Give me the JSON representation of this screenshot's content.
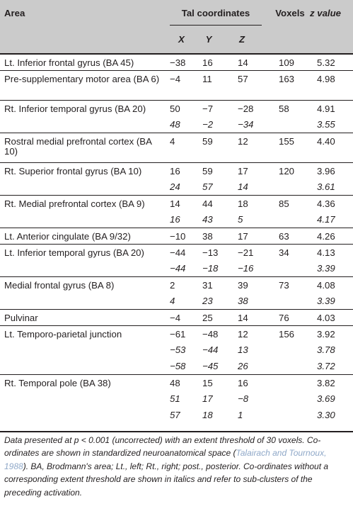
{
  "header": {
    "area": "Area",
    "tal": "Tal coordinates",
    "voxels": "Voxels",
    "zvalue": "z value",
    "x": "X",
    "y": "Y",
    "z": "Z"
  },
  "rows": [
    {
      "area": "Lt. Inferior frontal gyrus (BA 45)",
      "x": "−38",
      "y": "16",
      "z": "14",
      "voxels": "109",
      "zv": "5.32",
      "sub": false,
      "first": true
    },
    {
      "area": "Pre-supplementary motor area (BA 6)",
      "x": "−4",
      "y": "11",
      "z": "57",
      "voxels": "163",
      "zv": "4.98",
      "sub": false,
      "first": true,
      "tall": true
    },
    {
      "area": "Rt. Inferior temporal gyrus (BA 20)",
      "x": "50",
      "y": "−7",
      "z": "−28",
      "voxels": "58",
      "zv": "4.91",
      "sub": false,
      "first": true
    },
    {
      "area": "",
      "x": "48",
      "y": "−2",
      "z": "−34",
      "voxels": "",
      "zv": "3.55",
      "sub": true
    },
    {
      "area": "Rostral medial prefrontal cortex (BA 10)",
      "x": "4",
      "y": "59",
      "z": "12",
      "voxels": "155",
      "zv": "4.40",
      "sub": false,
      "first": true,
      "tall": true
    },
    {
      "area": "Rt. Superior frontal gyrus (BA 10)",
      "x": "16",
      "y": "59",
      "z": "17",
      "voxels": "120",
      "zv": "3.96",
      "sub": false,
      "first": true
    },
    {
      "area": "",
      "x": "24",
      "y": "57",
      "z": "14",
      "voxels": "",
      "zv": "3.61",
      "sub": true
    },
    {
      "area": "Rt. Medial prefrontal cortex (BA 9)",
      "x": "14",
      "y": "44",
      "z": "18",
      "voxels": "85",
      "zv": "4.36",
      "sub": false,
      "first": true
    },
    {
      "area": "",
      "x": "16",
      "y": "43",
      "z": "5",
      "voxels": "",
      "zv": "4.17",
      "sub": true
    },
    {
      "area": "Lt. Anterior cingulate (BA 9/32)",
      "x": "−10",
      "y": "38",
      "z": "17",
      "voxels": "63",
      "zv": "4.26",
      "sub": false,
      "first": true
    },
    {
      "area": "Lt. Inferior temporal gyrus (BA 20)",
      "x": "−44",
      "y": "−13",
      "z": "−21",
      "voxels": "34",
      "zv": "4.13",
      "sub": false,
      "first": true
    },
    {
      "area": "",
      "x": "−44",
      "y": "−18",
      "z": "−16",
      "voxels": "",
      "zv": "3.39",
      "sub": true
    },
    {
      "area": "Medial frontal gyrus (BA 8)",
      "x": "2",
      "y": "31",
      "z": "39",
      "voxels": "73",
      "zv": "4.08",
      "sub": false,
      "first": true
    },
    {
      "area": "",
      "x": "4",
      "y": "23",
      "z": "38",
      "voxels": "",
      "zv": "3.39",
      "sub": true
    },
    {
      "area": "Pulvinar",
      "x": "−4",
      "y": "25",
      "z": "14",
      "voxels": "76",
      "zv": "4.03",
      "sub": false,
      "first": true
    },
    {
      "area": "Lt. Temporo-parietal junction",
      "x": "−61",
      "y": "−48",
      "z": "12",
      "voxels": "156",
      "zv": "3.92",
      "sub": false,
      "first": true
    },
    {
      "area": "",
      "x": "−53",
      "y": "−44",
      "z": "13",
      "voxels": "",
      "zv": "3.78",
      "sub": true
    },
    {
      "area": "",
      "x": "−58",
      "y": "−45",
      "z": "26",
      "voxels": "",
      "zv": "3.72",
      "sub": true
    },
    {
      "area": "Rt. Temporal pole (BA 38)",
      "x": "48",
      "y": "15",
      "z": "16",
      "voxels": "",
      "zv": "3.82",
      "sub": false,
      "first": true
    },
    {
      "area": "",
      "x": "51",
      "y": "17",
      "z": "−8",
      "voxels": "",
      "zv": "3.69",
      "sub": true
    },
    {
      "area": "",
      "x": "57",
      "y": "18",
      "z": "1",
      "voxels": "",
      "zv": "3.30",
      "sub": true
    }
  ],
  "footnote": {
    "part1": "Data presented at p < 0.001 (uncorrected) with an extent threshold of 30 voxels. Co-ordinates are shown in standardized neuroanatomical space (",
    "cite": "Talairach and Tournoux, 1988",
    "part2": "). BA, Brodmann's area; Lt., left; Rt., right; post., posterior. Co-ordinates without a corresponding extent threshold are shown in italics and refer to sub-clusters of the preceding activation."
  }
}
